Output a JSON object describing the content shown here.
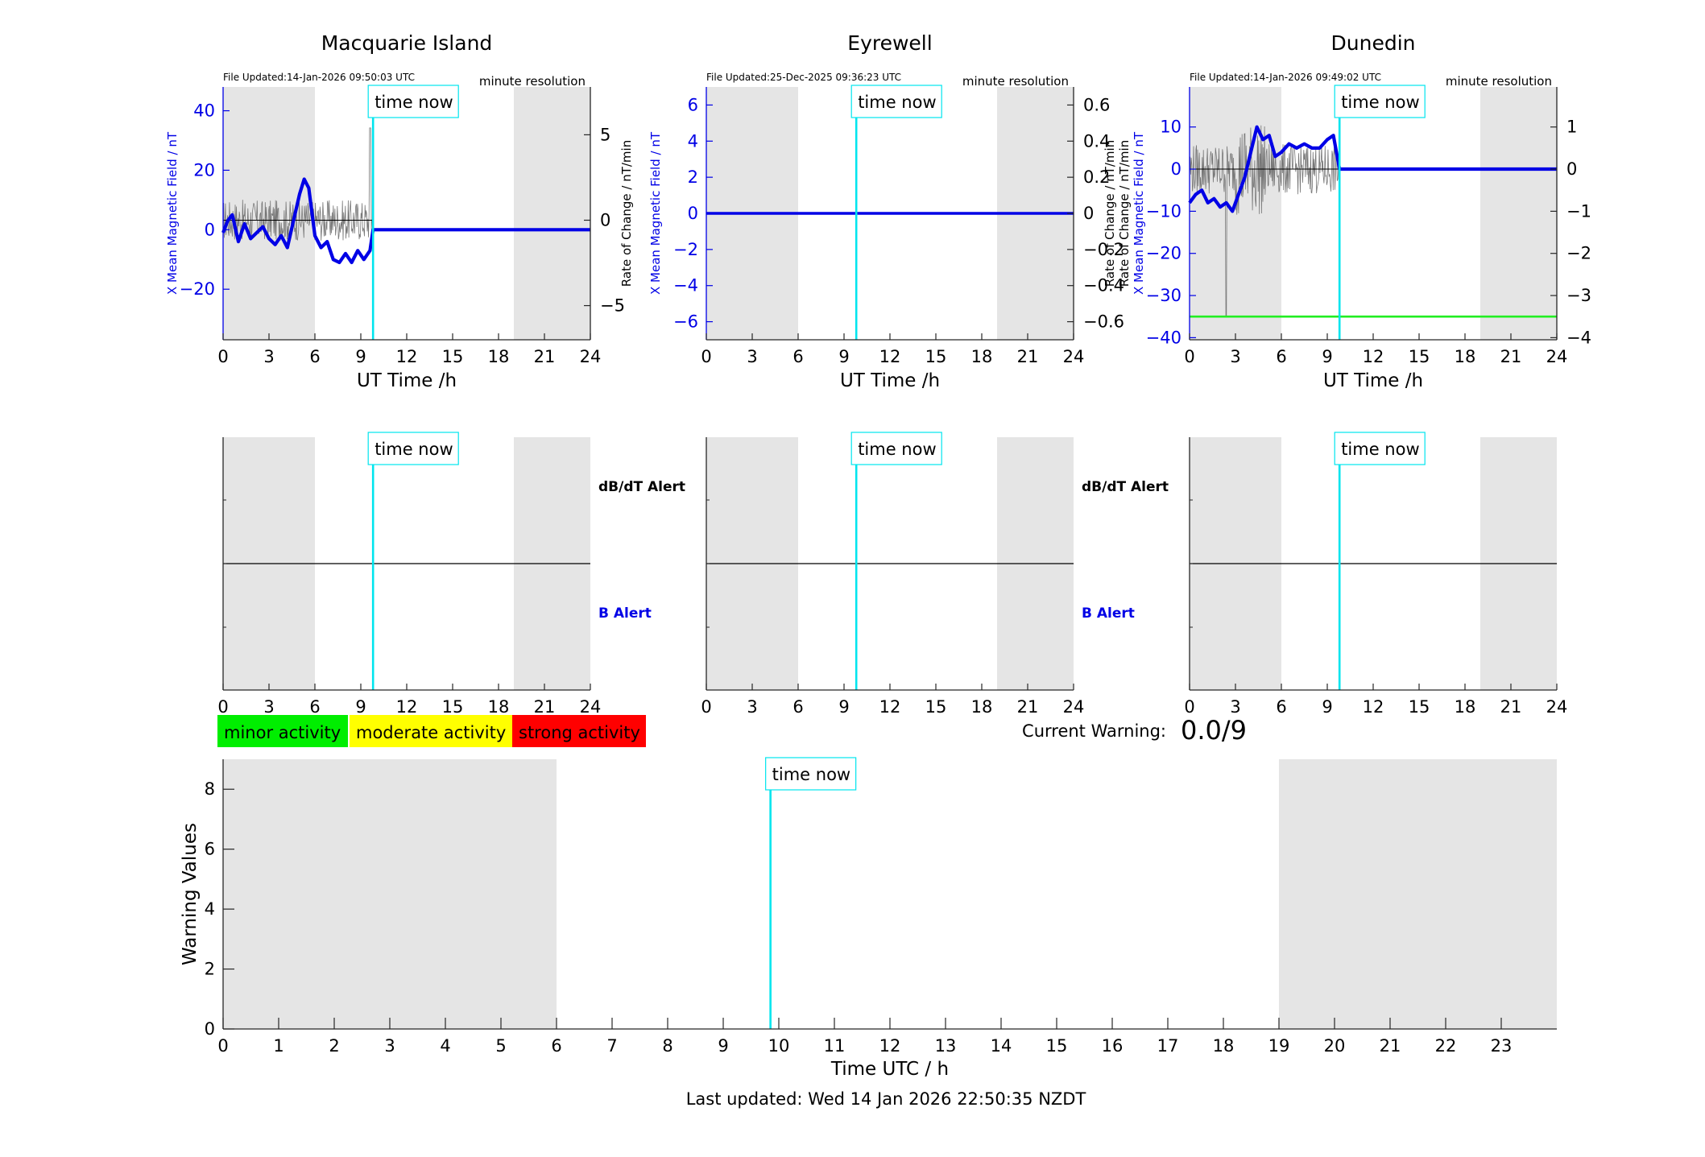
{
  "colors": {
    "x_mean_line": "#0000e6",
    "rate_line": "#777777",
    "time_now_line": "#00e5ee",
    "shade": "#e5e5e5",
    "dunedin_threshold": "#22ee22",
    "minor": "#00ee00",
    "moderate": "#ffff00",
    "strong": "#ff0000",
    "b_alert_text": "#0000e6"
  },
  "labels": {
    "time_now": "time now",
    "minute_resolution": "minute resolution",
    "ut_time_axis": "UT Time /h",
    "x_mean_axis": "X Mean Magnetic Field / nT",
    "rate_axis": "Rate of Change / nT/min",
    "dbdt_alert": "dB/dT Alert",
    "b_alert": "B Alert",
    "warning_axis": "Warning Values",
    "time_utc_axis": "Time UTC / h",
    "current_warning_label": "Current Warning:",
    "current_warning_value": "0.0/9",
    "last_updated": "Last updated: Wed 14 Jan 2026 22:50:35 NZDT"
  },
  "legend": {
    "minor": "minor activity",
    "moderate": "moderate activity",
    "strong": "strong activity"
  },
  "stations": [
    {
      "name": "Macquarie Island",
      "file_updated": "File Updated:14-Jan-2026 09:50:03 UTC"
    },
    {
      "name": "Eyrewell",
      "file_updated": "File Updated:25-Dec-2025 09:36:23 UTC"
    },
    {
      "name": "Dunedin",
      "file_updated": "File Updated:14-Jan-2026 09:49:02 UTC"
    }
  ],
  "chart_data": [
    {
      "type": "line",
      "title": "Macquarie Island",
      "xlabel": "UT Time /h",
      "ylabel": "X Mean Magnetic Field / nT",
      "y2label": "Rate of Change / nT/min",
      "xlim": [
        0,
        24
      ],
      "ylim": [
        -37,
        48
      ],
      "y2lim": [
        -7,
        7.8
      ],
      "xticks": [
        0,
        3,
        6,
        9,
        12,
        15,
        18,
        21,
        24
      ],
      "yticks": [
        -20,
        0,
        20,
        40
      ],
      "y2ticks": [
        -5,
        0,
        5
      ],
      "shaded_night_hours": [
        [
          0,
          6
        ],
        [
          19,
          24
        ]
      ],
      "time_now": 9.8,
      "series": [
        {
          "x": [
            0,
            0.3,
            0.6,
            1.0,
            1.4,
            1.8,
            2.2,
            2.6,
            3.0,
            3.4,
            3.8,
            4.2,
            4.6,
            5.0,
            5.3,
            5.6,
            6.0,
            6.4,
            6.8,
            7.2,
            7.6,
            8.0,
            8.4,
            8.8,
            9.2,
            9.6,
            9.8,
            24
          ],
          "y": [
            -1,
            3,
            5,
            -4,
            2,
            -3,
            -1,
            1,
            -3,
            -5,
            -2,
            -6,
            3,
            12,
            17,
            14,
            -2,
            -6,
            -4,
            -10,
            -11,
            -8,
            -11,
            -7,
            -10,
            -7,
            0,
            0
          ]
        }
      ]
    },
    {
      "type": "line",
      "title": "Eyrewell",
      "xlabel": "UT Time /h",
      "ylabel": "X Mean Magnetic Field / nT",
      "y2label": "Rate of Change / nT/min",
      "xlim": [
        0,
        24
      ],
      "ylim": [
        -7,
        7
      ],
      "y2lim": [
        -0.7,
        0.7
      ],
      "xticks": [
        0,
        3,
        6,
        9,
        12,
        15,
        18,
        21,
        24
      ],
      "yticks": [
        -6,
        -4,
        -2,
        0,
        2,
        4,
        6
      ],
      "y2ticks": [
        -0.6,
        -0.4,
        -0.2,
        0,
        0.2,
        0.4,
        0.6
      ],
      "shaded_night_hours": [
        [
          0,
          6
        ],
        [
          19,
          24
        ]
      ],
      "time_now": 9.8,
      "series": [
        {
          "x": [
            0,
            24
          ],
          "y": [
            0,
            0
          ]
        }
      ]
    },
    {
      "type": "line",
      "title": "Dunedin",
      "xlabel": "UT Time /h",
      "ylabel": "X Mean Magnetic Field / nT",
      "y2label": "Rate of Change / nT/min",
      "xlim": [
        0,
        24
      ],
      "ylim": [
        -40.5,
        19.5
      ],
      "y2lim": [
        -4.05,
        1.95
      ],
      "xticks": [
        0,
        3,
        6,
        9,
        12,
        15,
        18,
        21,
        24
      ],
      "yticks": [
        -40,
        -30,
        -20,
        -10,
        0,
        10
      ],
      "y2ticks": [
        -4,
        -3,
        -2,
        -1,
        0,
        1
      ],
      "shaded_night_hours": [
        [
          0,
          6
        ],
        [
          19,
          24
        ]
      ],
      "time_now": 9.8,
      "threshold_line": -35,
      "series": [
        {
          "x": [
            0,
            0.4,
            0.8,
            1.2,
            1.6,
            2.0,
            2.4,
            2.8,
            3.2,
            3.6,
            4.0,
            4.4,
            4.8,
            5.2,
            5.6,
            6.0,
            6.5,
            7.0,
            7.5,
            8.0,
            8.5,
            9.0,
            9.4,
            9.8,
            24
          ],
          "y": [
            -8,
            -6,
            -5,
            -8,
            -7,
            -9,
            -8,
            -10,
            -6,
            -2,
            4,
            10,
            7,
            8,
            3,
            4,
            6,
            5,
            6,
            5,
            5,
            7,
            8,
            0,
            0
          ]
        }
      ]
    },
    {
      "type": "line",
      "title": "",
      "xlabel": "",
      "ylabel": "",
      "xlim": [
        0,
        24
      ],
      "xticks": [
        0,
        3,
        6,
        9,
        12,
        15,
        18,
        21,
        24
      ],
      "shaded_night_hours": [
        [
          0,
          6
        ],
        [
          19,
          24
        ]
      ],
      "time_now": 9.8,
      "annotations": [
        "dB/dT Alert",
        "B Alert"
      ],
      "series": []
    },
    {
      "type": "line",
      "title": "",
      "xlabel": "",
      "ylabel": "",
      "xlim": [
        0,
        24
      ],
      "xticks": [
        0,
        3,
        6,
        9,
        12,
        15,
        18,
        21,
        24
      ],
      "shaded_night_hours": [
        [
          0,
          6
        ],
        [
          19,
          24
        ]
      ],
      "time_now": 9.8,
      "annotations": [
        "dB/dT Alert",
        "B Alert"
      ],
      "series": []
    },
    {
      "type": "line",
      "title": "",
      "xlabel": "",
      "ylabel": "",
      "xlim": [
        0,
        24
      ],
      "xticks": [
        0,
        3,
        6,
        9,
        12,
        15,
        18,
        21,
        24
      ],
      "shaded_night_hours": [
        [
          0,
          6
        ],
        [
          19,
          24
        ]
      ],
      "time_now": 9.8,
      "series": []
    },
    {
      "type": "line",
      "title": "",
      "xlabel": "Time UTC / h",
      "ylabel": "Warning Values",
      "xlim": [
        0,
        24
      ],
      "ylim": [
        0,
        9
      ],
      "xticks": [
        0,
        1,
        2,
        3,
        4,
        5,
        6,
        7,
        8,
        9,
        10,
        11,
        12,
        13,
        14,
        15,
        16,
        17,
        18,
        19,
        20,
        21,
        22,
        23
      ],
      "yticks": [
        0,
        2,
        4,
        6,
        8
      ],
      "shaded_night_hours": [
        [
          0,
          6
        ],
        [
          19,
          24
        ]
      ],
      "time_now": 9.85,
      "current_warning": 0.0,
      "series": []
    }
  ]
}
